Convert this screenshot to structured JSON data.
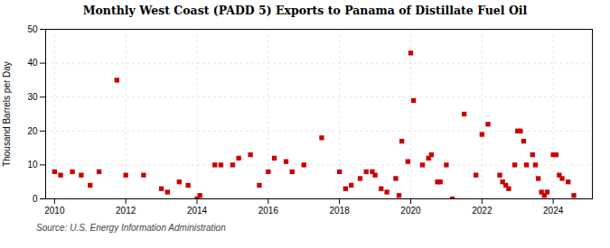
{
  "chart_data": {
    "type": "scatter",
    "title": "Monthly West Coast (PADD 5) Exports to Panama of Distillate Fuel Oil",
    "ylabel": "Thousand Barrels per Day",
    "annotation": "Source: U.S. Energy Information Administration",
    "color": "#cc0000",
    "marker": "square",
    "grid": true,
    "xlim": [
      2009.75,
      2025.1
    ],
    "ylim": [
      0,
      50
    ],
    "xticks": [
      2010,
      2012,
      2014,
      2016,
      2018,
      2020,
      2022,
      2024
    ],
    "yticks": [
      0,
      10,
      20,
      30,
      40,
      50
    ],
    "x": [
      2010.0,
      2010.17,
      2010.5,
      2010.75,
      2011.0,
      2011.25,
      2011.75,
      2012.0,
      2012.5,
      2013.0,
      2013.17,
      2013.5,
      2013.75,
      2014.0,
      2014.08,
      2014.5,
      2014.67,
      2015.0,
      2015.17,
      2015.5,
      2015.75,
      2016.0,
      2016.17,
      2016.5,
      2016.67,
      2017.0,
      2017.5,
      2018.0,
      2018.17,
      2018.33,
      2018.58,
      2018.75,
      2018.92,
      2019.0,
      2019.17,
      2019.33,
      2019.58,
      2019.67,
      2019.75,
      2019.92,
      2020.0,
      2020.08,
      2020.33,
      2020.5,
      2020.58,
      2020.75,
      2020.83,
      2021.0,
      2021.17,
      2021.5,
      2021.83,
      2022.0,
      2022.17,
      2022.5,
      2022.58,
      2022.67,
      2022.75,
      2022.92,
      2023.0,
      2023.08,
      2023.17,
      2023.25,
      2023.42,
      2023.5,
      2023.58,
      2023.67,
      2023.75,
      2023.83,
      2024.0,
      2024.08,
      2024.17,
      2024.25,
      2024.42,
      2024.58
    ],
    "values": [
      8,
      7,
      8,
      7,
      4,
      8,
      35,
      7,
      7,
      3,
      2,
      5,
      4,
      0,
      1,
      10,
      10,
      10,
      12,
      13,
      4,
      8,
      12,
      11,
      8,
      10,
      18,
      8,
      3,
      4,
      6,
      8,
      8,
      7,
      3,
      2,
      6,
      1,
      17,
      11,
      43,
      29,
      10,
      12,
      13,
      5,
      5,
      10,
      0,
      25,
      7,
      19,
      22,
      7,
      5,
      4,
      3,
      10,
      20,
      20,
      17,
      10,
      13,
      10,
      6,
      2,
      1,
      2,
      13,
      13,
      7,
      6,
      5,
      1
    ]
  }
}
